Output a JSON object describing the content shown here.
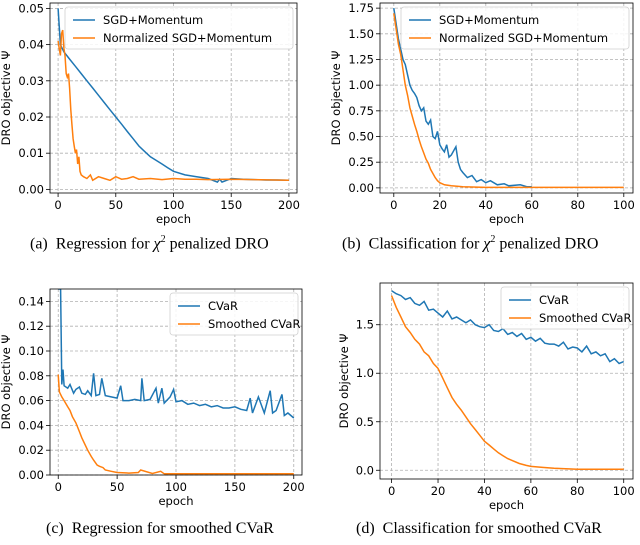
{
  "chart_data": [
    {
      "type": "line",
      "id": "a",
      "caption": {
        "label": "(a)",
        "prefix": "Regression for ",
        "math": "χ",
        "sup": "2",
        "suffix": " penalized DRO"
      },
      "xlabel": "epoch",
      "ylabel": "DRO objective Ψ",
      "xlim": [
        -7,
        207
      ],
      "ylim": [
        -0.001,
        0.0515
      ],
      "xticks": [
        0,
        50,
        100,
        150,
        200
      ],
      "yticks": [
        0.0,
        0.01,
        0.02,
        0.03,
        0.04,
        0.05
      ],
      "ytick_decimals": 2,
      "grid": true,
      "legend": "top-right",
      "series": [
        {
          "name": "SGD+Momentum",
          "color": "#1f77b4",
          "x": [
            0,
            2,
            5,
            10,
            15,
            20,
            25,
            30,
            35,
            40,
            45,
            50,
            55,
            60,
            65,
            70,
            75,
            80,
            85,
            90,
            95,
            100,
            110,
            120,
            130,
            138,
            140,
            142,
            150,
            160,
            170,
            180,
            190,
            200
          ],
          "y": [
            0.05,
            0.04,
            0.038,
            0.036,
            0.034,
            0.032,
            0.03,
            0.028,
            0.026,
            0.024,
            0.022,
            0.02,
            0.018,
            0.016,
            0.014,
            0.012,
            0.0105,
            0.009,
            0.008,
            0.007,
            0.006,
            0.005,
            0.004,
            0.0035,
            0.003,
            0.002,
            0.0028,
            0.002,
            0.003,
            0.0028,
            0.0027,
            0.0026,
            0.0026,
            0.0025
          ]
        },
        {
          "name": "Normalized SGD+Momentum",
          "color": "#ff7f0e",
          "x": [
            0,
            1,
            2,
            3,
            4,
            5,
            6,
            7,
            8,
            9,
            10,
            11,
            12,
            13,
            14,
            15,
            16,
            17,
            18,
            19,
            20,
            22,
            25,
            28,
            30,
            35,
            40,
            45,
            50,
            55,
            60,
            65,
            70,
            80,
            90,
            100,
            110,
            120,
            130,
            150,
            170,
            200
          ],
          "y": [
            0.041,
            0.039,
            0.037,
            0.043,
            0.044,
            0.039,
            0.037,
            0.032,
            0.031,
            0.032,
            0.028,
            0.022,
            0.018,
            0.014,
            0.012,
            0.01,
            0.011,
            0.007,
            0.009,
            0.005,
            0.004,
            0.0035,
            0.003,
            0.004,
            0.0025,
            0.0035,
            0.003,
            0.0025,
            0.0035,
            0.0028,
            0.003,
            0.0035,
            0.0028,
            0.003,
            0.0027,
            0.003,
            0.0028,
            0.0028,
            0.0027,
            0.0028,
            0.0027,
            0.0025
          ]
        }
      ]
    },
    {
      "type": "line",
      "id": "b",
      "caption": {
        "label": "(b)",
        "prefix": "Classification for ",
        "math": "χ",
        "sup": "2",
        "suffix": " penalized DRO"
      },
      "xlabel": "epoch",
      "ylabel": "DRO objective Ψ",
      "xlim": [
        -6,
        104
      ],
      "ylim": [
        -0.05,
        1.8
      ],
      "xticks": [
        0,
        20,
        40,
        60,
        80,
        100
      ],
      "yticks": [
        0.0,
        0.25,
        0.5,
        0.75,
        1.0,
        1.25,
        1.5,
        1.75
      ],
      "ytick_decimals": 2,
      "grid": true,
      "legend": "top-right",
      "series": [
        {
          "name": "SGD+Momentum",
          "color": "#1f77b4",
          "x": [
            0,
            1,
            2,
            3,
            4,
            5,
            6,
            7,
            8,
            9,
            10,
            11,
            12,
            13,
            14,
            15,
            16,
            17,
            18,
            19,
            20,
            21,
            22,
            23,
            24,
            25,
            26,
            27,
            28,
            29,
            30,
            32,
            34,
            36,
            38,
            40,
            42,
            45,
            48,
            50,
            55,
            58,
            60
          ],
          "y": [
            1.75,
            1.6,
            1.45,
            1.35,
            1.25,
            1.2,
            1.1,
            1.0,
            0.95,
            0.92,
            0.88,
            0.8,
            0.75,
            0.78,
            0.65,
            0.62,
            0.66,
            0.5,
            0.48,
            0.55,
            0.42,
            0.38,
            0.35,
            0.42,
            0.3,
            0.32,
            0.36,
            0.4,
            0.25,
            0.18,
            0.15,
            0.1,
            0.12,
            0.06,
            0.08,
            0.05,
            0.07,
            0.03,
            0.04,
            0.02,
            0.03,
            0.01,
            0.01
          ]
        },
        {
          "name": "Normalized SGD+Momentum",
          "color": "#ff7f0e",
          "x": [
            0,
            1,
            2,
            3,
            4,
            5,
            6,
            7,
            8,
            9,
            10,
            11,
            12,
            13,
            14,
            15,
            16,
            17,
            18,
            19,
            20,
            22,
            25,
            30,
            40,
            60,
            80,
            100
          ],
          "y": [
            1.7,
            1.55,
            1.4,
            1.3,
            1.15,
            1.0,
            0.9,
            0.78,
            0.7,
            0.62,
            0.55,
            0.47,
            0.4,
            0.34,
            0.28,
            0.24,
            0.18,
            0.14,
            0.1,
            0.07,
            0.05,
            0.03,
            0.02,
            0.01,
            0.005,
            0.005,
            0.005,
            0.005
          ]
        }
      ]
    },
    {
      "type": "line",
      "id": "c",
      "caption": {
        "label": "(c)",
        "prefix": "Regression for smoothed CVaR",
        "math": "",
        "sup": "",
        "suffix": ""
      },
      "xlabel": "epoch",
      "ylabel": "DRO objective Ψ",
      "xlim": [
        -7,
        207
      ],
      "ylim": [
        0,
        0.15
      ],
      "xticks": [
        0,
        50,
        100,
        150,
        200
      ],
      "yticks": [
        0.0,
        0.02,
        0.04,
        0.06,
        0.08,
        0.1,
        0.12,
        0.14
      ],
      "ytick_decimals": 2,
      "grid": true,
      "legend": "top-right",
      "series": [
        {
          "name": "CVaR",
          "color": "#1f77b4",
          "x": [
            0,
            2,
            3,
            4,
            5,
            8,
            10,
            13,
            15,
            18,
            20,
            23,
            25,
            28,
            30,
            32,
            35,
            37,
            40,
            45,
            50,
            53,
            55,
            60,
            65,
            70,
            71,
            73,
            78,
            83,
            85,
            88,
            90,
            95,
            98,
            100,
            105,
            110,
            115,
            120,
            125,
            130,
            135,
            140,
            145,
            150,
            155,
            160,
            163,
            165,
            170,
            175,
            180,
            182,
            185,
            190,
            192,
            195,
            200
          ],
          "y": [
            0.15,
            0.15,
            0.073,
            0.085,
            0.072,
            0.07,
            0.073,
            0.066,
            0.069,
            0.071,
            0.066,
            0.065,
            0.068,
            0.064,
            0.082,
            0.064,
            0.065,
            0.078,
            0.064,
            0.063,
            0.062,
            0.072,
            0.06,
            0.06,
            0.061,
            0.06,
            0.078,
            0.06,
            0.061,
            0.07,
            0.058,
            0.07,
            0.058,
            0.063,
            0.069,
            0.059,
            0.06,
            0.057,
            0.058,
            0.056,
            0.057,
            0.055,
            0.056,
            0.054,
            0.054,
            0.055,
            0.053,
            0.052,
            0.062,
            0.05,
            0.063,
            0.05,
            0.068,
            0.05,
            0.052,
            0.065,
            0.048,
            0.05,
            0.046
          ]
        },
        {
          "name": "Smoothed CVaR",
          "color": "#ff7f0e",
          "x": [
            0,
            1,
            3,
            5,
            8,
            10,
            12,
            15,
            18,
            20,
            23,
            25,
            28,
            30,
            33,
            35,
            38,
            40,
            45,
            50,
            60,
            68,
            70,
            80,
            87,
            90,
            100,
            120,
            150,
            180,
            200
          ],
          "y": [
            0.081,
            0.067,
            0.063,
            0.06,
            0.055,
            0.052,
            0.047,
            0.042,
            0.035,
            0.03,
            0.024,
            0.02,
            0.015,
            0.012,
            0.008,
            0.007,
            0.006,
            0.004,
            0.003,
            0.002,
            0.0015,
            0.002,
            0.004,
            0.0012,
            0.003,
            0.001,
            0.001,
            0.001,
            0.001,
            0.001,
            0.001
          ]
        }
      ]
    },
    {
      "type": "line",
      "id": "d",
      "caption": {
        "label": "(d)",
        "prefix": "Classification for smoothed CVaR",
        "math": "",
        "sup": "",
        "suffix": ""
      },
      "xlabel": "epoch",
      "ylabel": "DRO objective Ψ",
      "xlim": [
        -5,
        104
      ],
      "ylim": [
        -0.09,
        1.93
      ],
      "xticks": [
        0,
        20,
        40,
        60,
        80,
        100
      ],
      "yticks": [
        0.0,
        0.5,
        1.0,
        1.5
      ],
      "ytick_decimals": 1,
      "grid": true,
      "legend": "top-right",
      "series": [
        {
          "name": "CVaR",
          "color": "#1f77b4",
          "x": [
            0,
            2,
            4,
            6,
            8,
            10,
            12,
            14,
            16,
            18,
            20,
            22,
            24,
            26,
            28,
            30,
            32,
            34,
            36,
            38,
            40,
            42,
            44,
            46,
            48,
            50,
            52,
            54,
            56,
            58,
            60,
            62,
            64,
            66,
            68,
            70,
            72,
            74,
            76,
            78,
            80,
            82,
            84,
            86,
            88,
            90,
            92,
            94,
            96,
            98,
            100
          ],
          "y": [
            1.85,
            1.82,
            1.8,
            1.76,
            1.78,
            1.72,
            1.7,
            1.74,
            1.65,
            1.66,
            1.62,
            1.58,
            1.64,
            1.56,
            1.58,
            1.55,
            1.52,
            1.55,
            1.5,
            1.48,
            1.47,
            1.5,
            1.44,
            1.43,
            1.46,
            1.4,
            1.42,
            1.38,
            1.41,
            1.35,
            1.37,
            1.33,
            1.36,
            1.31,
            1.3,
            1.3,
            1.28,
            1.32,
            1.25,
            1.27,
            1.26,
            1.22,
            1.28,
            1.2,
            1.22,
            1.18,
            1.2,
            1.12,
            1.15,
            1.1,
            1.12
          ]
        },
        {
          "name": "Smoothed CVaR",
          "color": "#ff7f0e",
          "x": [
            0,
            2,
            4,
            6,
            8,
            10,
            12,
            14,
            16,
            18,
            20,
            22,
            24,
            26,
            28,
            30,
            32,
            34,
            36,
            38,
            40,
            42,
            44,
            46,
            48,
            50,
            52,
            55,
            58,
            60,
            65,
            70,
            75,
            80,
            90,
            100
          ],
          "y": [
            1.8,
            1.68,
            1.58,
            1.48,
            1.42,
            1.35,
            1.3,
            1.22,
            1.18,
            1.1,
            1.05,
            0.95,
            0.85,
            0.75,
            0.68,
            0.62,
            0.55,
            0.48,
            0.42,
            0.36,
            0.3,
            0.26,
            0.22,
            0.18,
            0.15,
            0.12,
            0.1,
            0.07,
            0.05,
            0.04,
            0.03,
            0.02,
            0.015,
            0.01,
            0.01,
            0.01
          ]
        }
      ]
    }
  ]
}
